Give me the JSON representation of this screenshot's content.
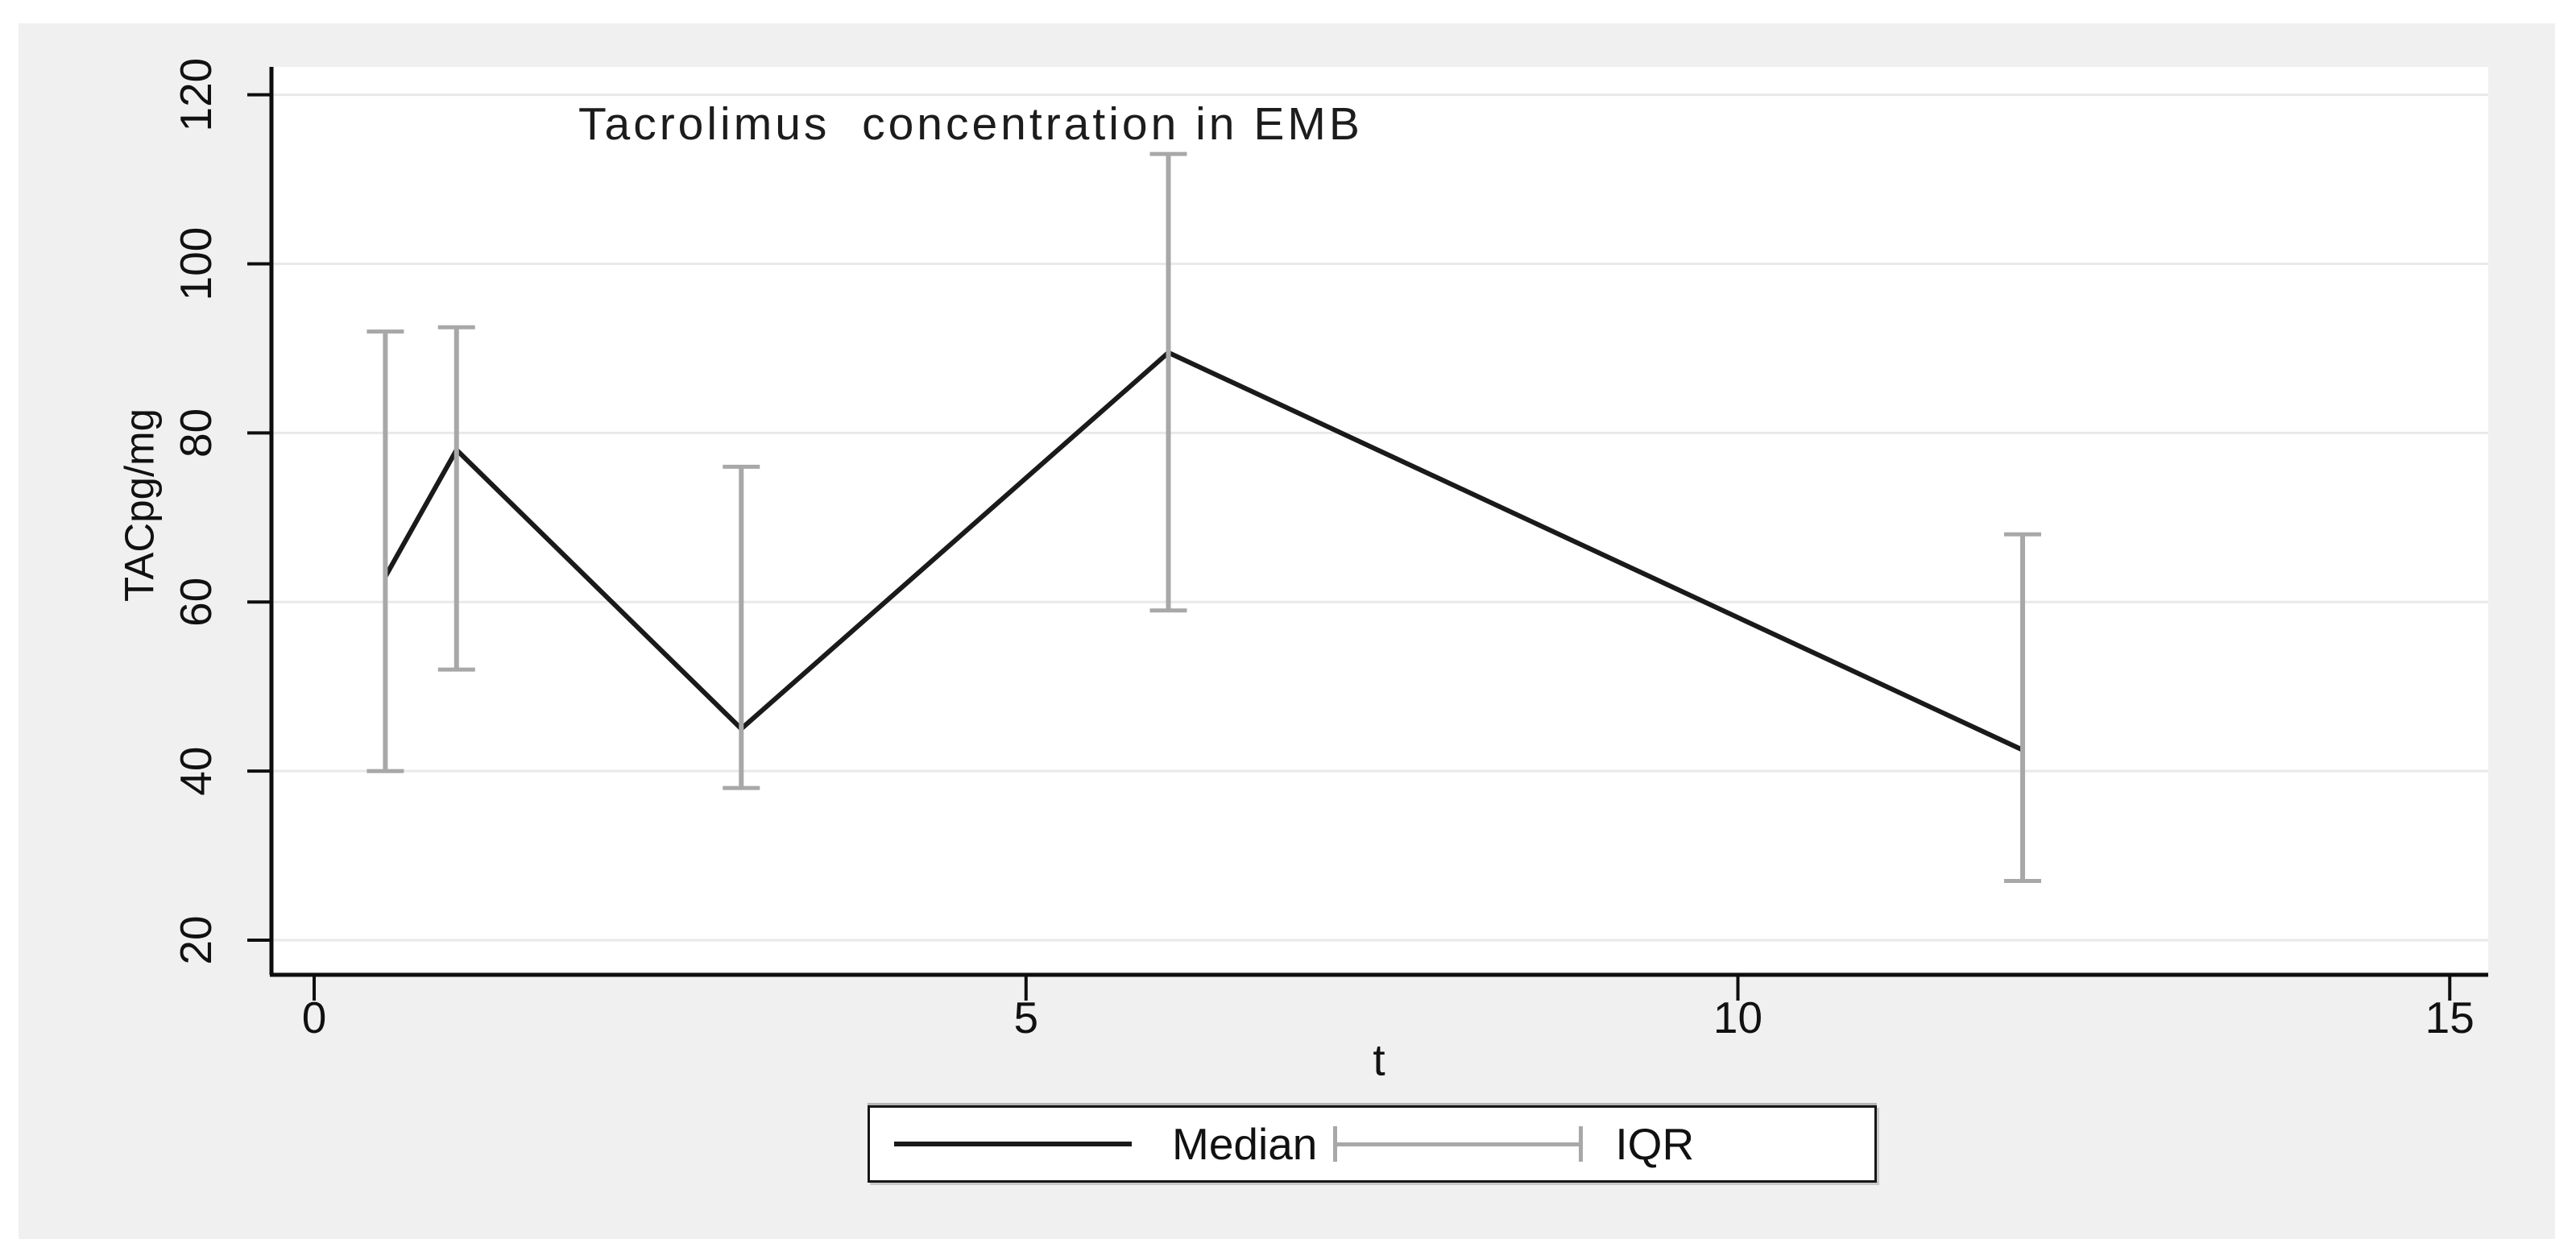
{
  "figure": {
    "title": "Tacrolimus  concentration in EMB",
    "x_axis_label": "t",
    "y_axis_label": "TACpg/mg"
  },
  "legend": {
    "items": [
      {
        "label": "Median",
        "symbol": "solid-line"
      },
      {
        "label": "IQR",
        "symbol": "capped-ibeam"
      }
    ]
  },
  "colors": {
    "canvas_bg": "#f0f0f0",
    "plot_bg": "#ffffff",
    "gridline": "#e9e9e9",
    "axis": "#0e0e0e",
    "tick_text": "#111111",
    "median_line": "#1a1a1a",
    "iqr": "#a8a8a8"
  },
  "chart_data": {
    "type": "line",
    "title": "Tacrolimus concentration in EMB",
    "xlabel": "t",
    "ylabel": "TACpg/mg",
    "x": [
      0.5,
      1,
      3,
      6,
      12
    ],
    "series": [
      {
        "name": "Median",
        "values": [
          63,
          78,
          45,
          89.5,
          42.5
        ]
      },
      {
        "name": "IQR lower (Q1)",
        "values": [
          40,
          52,
          38,
          59,
          27
        ]
      },
      {
        "name": "IQR upper (Q3)",
        "values": [
          92,
          92.5,
          76,
          113,
          68
        ]
      }
    ],
    "x_ticks": [
      0,
      5,
      10,
      15
    ],
    "y_ticks": [
      20,
      40,
      60,
      80,
      100,
      120
    ],
    "xlim": [
      -0.3,
      15.27
    ],
    "ylim": [
      15.9,
      123.3
    ],
    "grid": "horizontal-only",
    "legend_position": "bottom-center",
    "error_bars": "IQR vertical capped spikes at each x"
  }
}
